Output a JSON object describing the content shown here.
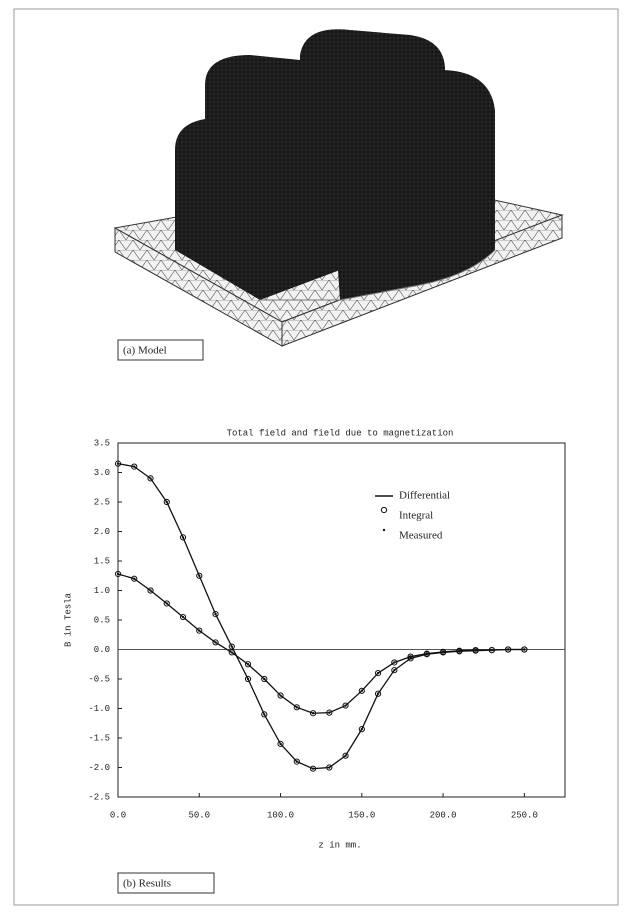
{
  "panel_a": {
    "caption": "(a) Model"
  },
  "chart_data": {
    "type": "line",
    "title": "Total field and field due to magnetization",
    "x_label": "z in mm.",
    "y_label": "B in Tesla",
    "x": [
      0,
      10,
      20,
      30,
      40,
      50,
      60,
      70,
      80,
      90,
      100,
      110,
      120,
      130,
      140,
      150,
      160,
      170,
      180,
      190,
      200,
      210,
      220,
      230,
      240,
      250
    ],
    "series": [
      {
        "name": "Differential",
        "marker": "line",
        "color": "#111111",
        "curves": [
          [
            3.15,
            3.1,
            2.9,
            2.5,
            1.9,
            1.25,
            0.6,
            0.05,
            -0.5,
            -1.1,
            -1.6,
            -1.9,
            -2.02,
            -2.0,
            -1.8,
            -1.35,
            -0.75,
            -0.35,
            -0.15,
            -0.08,
            -0.05,
            -0.03,
            -0.02,
            -0.01,
            0,
            0
          ],
          [
            1.28,
            1.2,
            1.0,
            0.78,
            0.55,
            0.32,
            0.12,
            -0.05,
            -0.25,
            -0.5,
            -0.78,
            -0.98,
            -1.08,
            -1.07,
            -0.95,
            -0.7,
            -0.4,
            -0.22,
            -0.12,
            -0.07,
            -0.04,
            -0.02,
            -0.01,
            -0.01,
            0,
            0
          ]
        ]
      },
      {
        "name": "Integral",
        "marker": "circle",
        "color": "#111111",
        "curves": [
          [
            3.15,
            3.1,
            2.9,
            2.5,
            1.9,
            1.25,
            0.6,
            0.05,
            -0.5,
            -1.1,
            -1.6,
            -1.9,
            -2.02,
            -2.0,
            -1.8,
            -1.35,
            -0.75,
            -0.35,
            -0.15,
            -0.08,
            -0.05,
            -0.03,
            -0.02,
            -0.01,
            0,
            0
          ],
          [
            1.28,
            1.2,
            1.0,
            0.78,
            0.55,
            0.32,
            0.12,
            -0.05,
            -0.25,
            -0.5,
            -0.78,
            -0.98,
            -1.08,
            -1.07,
            -0.95,
            -0.7,
            -0.4,
            -0.22,
            -0.12,
            -0.07,
            -0.04,
            -0.02,
            -0.01,
            -0.01,
            0,
            0
          ]
        ]
      },
      {
        "name": "Measured",
        "marker": "dot",
        "color": "#111111",
        "curves": [
          [
            3.15,
            3.1,
            2.9,
            2.5,
            1.9,
            1.25,
            0.6,
            0.05,
            -0.5,
            -1.1,
            -1.6,
            -1.9,
            -2.02,
            -2.0,
            -1.8,
            -1.35,
            -0.75,
            -0.35,
            -0.15,
            -0.08,
            -0.05,
            -0.03,
            -0.02,
            -0.01,
            0,
            0
          ],
          [
            1.28,
            1.2,
            1.0,
            0.78,
            0.55,
            0.32,
            0.12,
            -0.05,
            -0.25,
            -0.5,
            -0.78,
            -0.98,
            -1.08,
            -1.07,
            -0.95,
            -0.7,
            -0.4,
            -0.22,
            -0.12,
            -0.07,
            -0.04,
            -0.02,
            -0.01,
            -0.01,
            0,
            0
          ]
        ]
      }
    ],
    "xlim": [
      0,
      275
    ],
    "ylim": [
      -2.5,
      3.5
    ],
    "xticks": [
      {
        "value": 0,
        "label": "0.0"
      },
      {
        "value": 50,
        "label": "50.0"
      },
      {
        "value": 100,
        "label": "100.0"
      },
      {
        "value": 150,
        "label": "150.0"
      },
      {
        "value": 200,
        "label": "200.0"
      },
      {
        "value": 250,
        "label": "250.0"
      }
    ],
    "yticks": [
      -2.5,
      {
        "value": -2,
        "label": "-2.0"
      },
      -1.5,
      {
        "value": -1,
        "label": "-1.0"
      },
      -0.5,
      {
        "value": 0,
        "label": "0.0"
      },
      0.5,
      {
        "value": 1,
        "label": "1.0"
      },
      1.5,
      {
        "value": 2,
        "label": "2.0"
      },
      2.5,
      {
        "value": 3,
        "label": "3.0"
      },
      3.5
    ],
    "grid": false,
    "legend": "upper right"
  },
  "panel_b": {
    "caption": "(b) Results"
  }
}
